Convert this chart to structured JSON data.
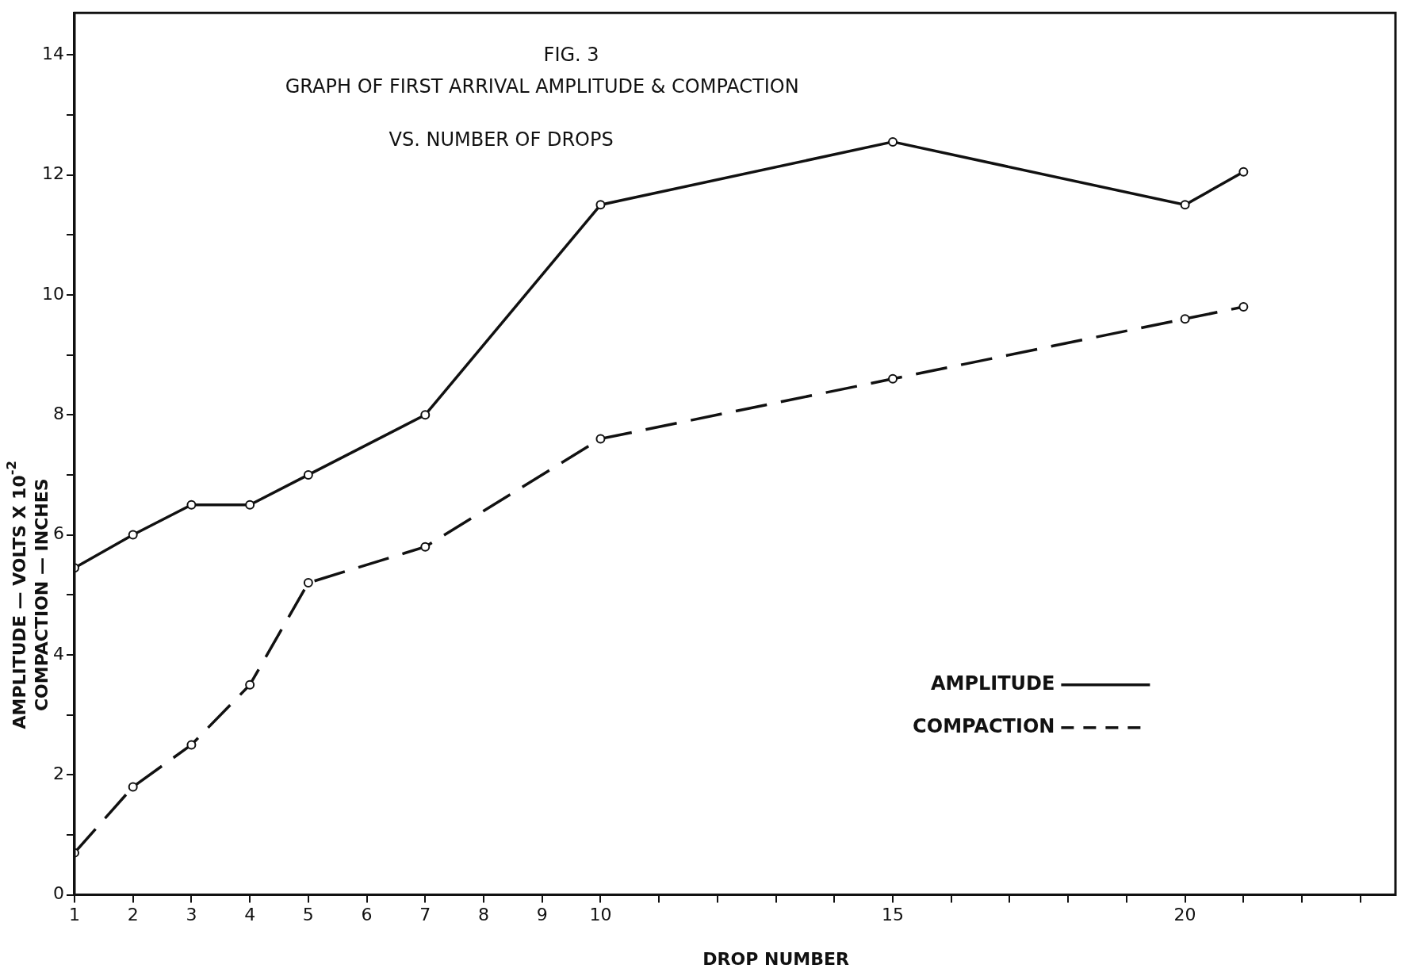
{
  "chart_data": {
    "type": "line",
    "title": "FIG. 3",
    "subtitle": "GRAPH OF FIRST ARRIVAL AMPLITUDE & COMPACTION",
    "annotations": [
      "VS. NUMBER OF DROPS"
    ],
    "xlabel": "DROP NUMBER",
    "ylabel": "AMPLITUDE — VOLTS X 10$^{-2}$\nCOMPACTION — INCHES",
    "xlim": [
      1,
      23.6
    ],
    "xticks": [
      1,
      2,
      3,
      4,
      5,
      6,
      7,
      8,
      9,
      10,
      {
        "value": 11,
        "label": null
      },
      {
        "value": 12,
        "label": null
      },
      {
        "value": 13,
        "label": null
      },
      {
        "value": 14,
        "label": null
      },
      15,
      {
        "value": 16,
        "label": null
      },
      {
        "value": 17,
        "label": null
      },
      {
        "value": 18,
        "label": null
      },
      {
        "value": 19,
        "label": null
      },
      20,
      {
        "value": 21,
        "label": null
      },
      {
        "value": 22,
        "label": null
      },
      {
        "value": 23,
        "label": null
      }
    ],
    "ylim": [
      0,
      14.7
    ],
    "yticks": [
      0,
      {
        "value": 1,
        "label": null
      },
      2,
      {
        "value": 3,
        "label": null
      },
      4,
      {
        "value": 5,
        "label": null
      },
      6,
      {
        "value": 7,
        "label": null
      },
      8,
      {
        "value": 9,
        "label": null
      },
      10,
      {
        "value": 11,
        "label": null
      },
      12,
      {
        "value": 13,
        "label": null
      },
      14
    ],
    "grid": false,
    "legend": "bottom right",
    "marker": "circle",
    "series": [
      {
        "name": "AMPLITUDE",
        "color": "#111111",
        "line_style": "solid",
        "x": [
          1,
          2,
          3,
          4,
          5,
          7,
          10,
          15,
          20,
          21
        ],
        "values": [
          5.45,
          6.0,
          6.5,
          6.5,
          7.0,
          8.0,
          11.5,
          12.55,
          11.5,
          12.05
        ]
      },
      {
        "name": "COMPACTION",
        "color": "#111111",
        "line_style": "dashed",
        "x": [
          1,
          2,
          3,
          4,
          5,
          7,
          10,
          15,
          20,
          21
        ],
        "values": [
          0.7,
          1.8,
          2.5,
          3.5,
          5.2,
          5.8,
          7.6,
          8.6,
          9.6,
          9.8
        ]
      }
    ]
  }
}
